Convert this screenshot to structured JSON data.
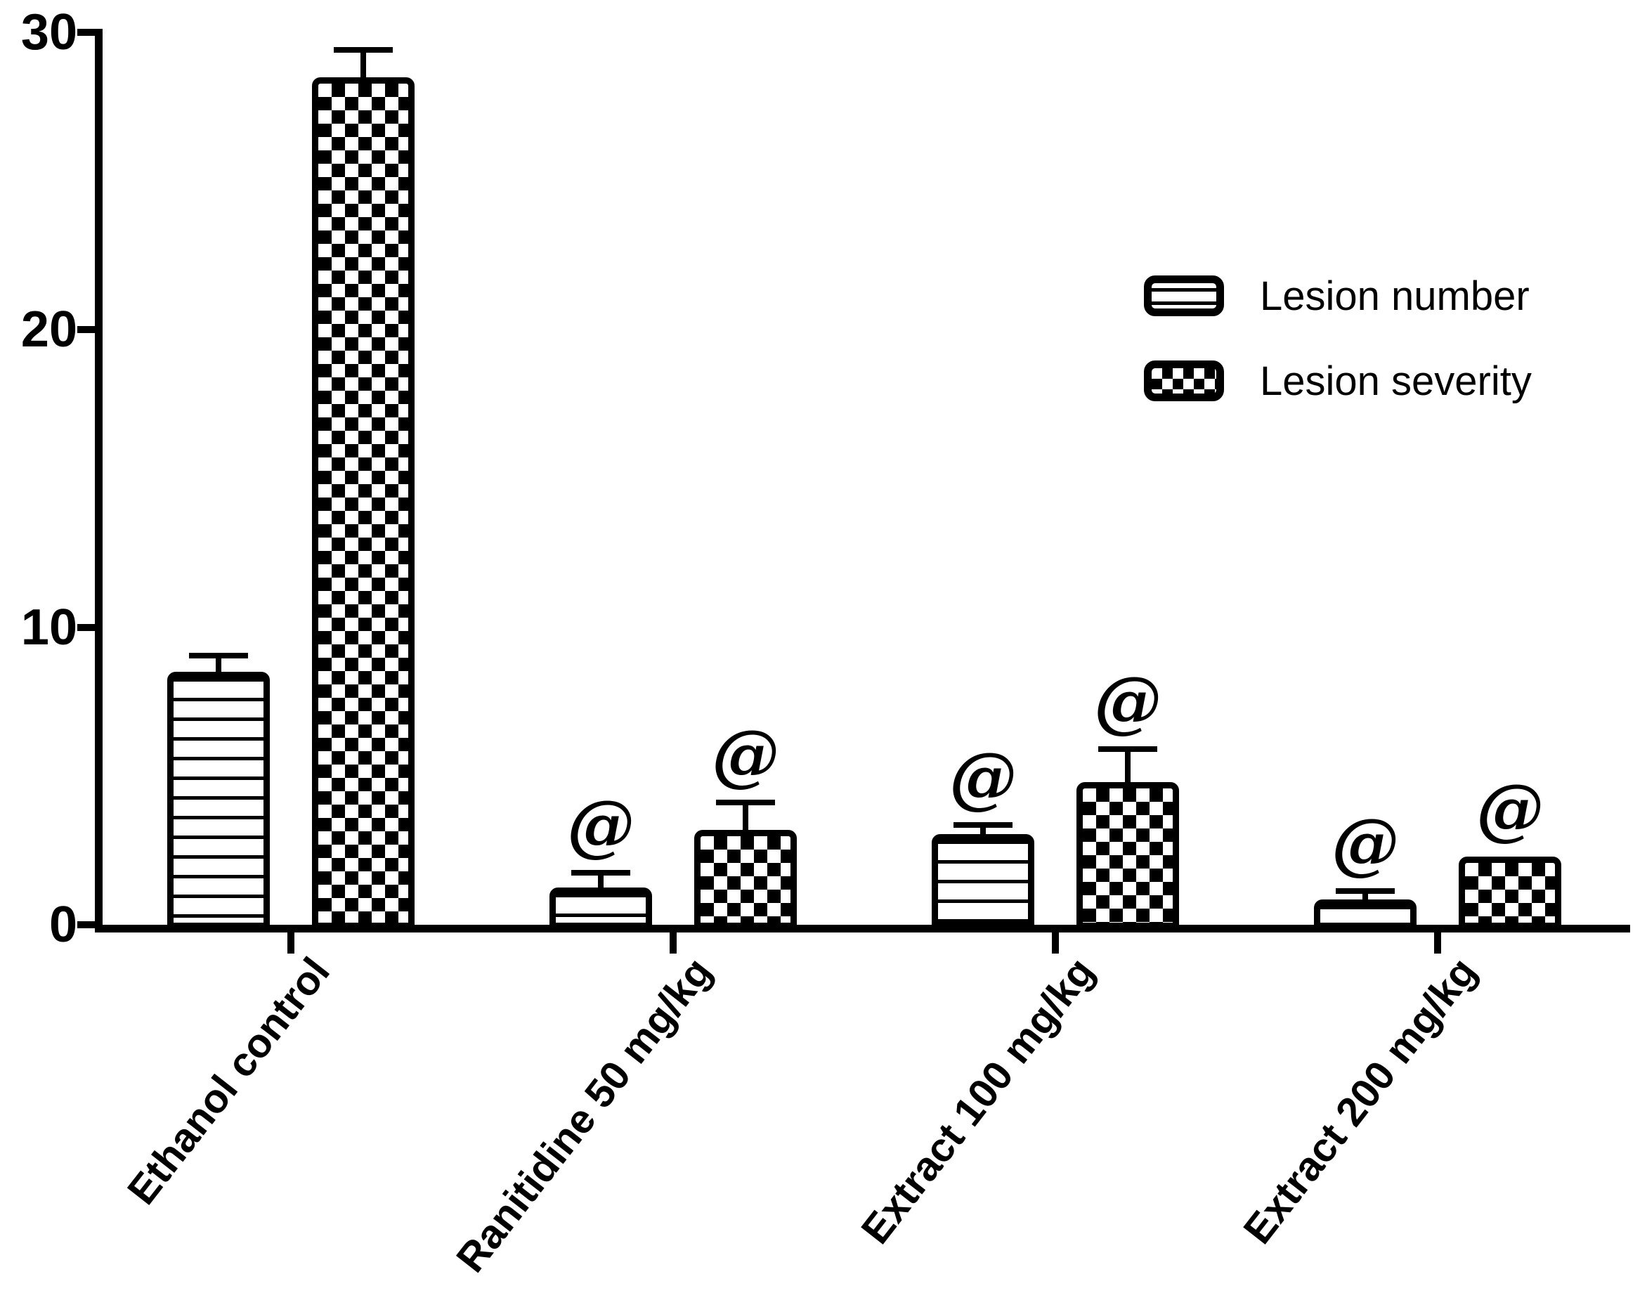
{
  "colors": {
    "foreground": "#000000",
    "background": "#ffffff"
  },
  "legend": {
    "items": [
      {
        "label": "Lesion number",
        "pattern": "horizontal-lines"
      },
      {
        "label": "Lesion severity",
        "pattern": "checkerboard"
      }
    ]
  },
  "chart_data": {
    "type": "bar",
    "title": "",
    "xlabel": "",
    "ylabel": "",
    "grid": false,
    "legend_position": "upper-right",
    "ylim": [
      0,
      30
    ],
    "yticks": [
      0,
      10,
      20,
      30
    ],
    "categories": [
      "Ethanol control",
      "Ranitidine 50 mg/kg",
      "Extract 100 mg/kg",
      "Extract 200 mg/kg"
    ],
    "series": [
      {
        "name": "Lesion number",
        "pattern": "horizontal-lines",
        "values": [
          8.5,
          1.25,
          3.05,
          0.85
        ],
        "sem": [
          0.55,
          0.5,
          0.3,
          0.28
        ],
        "annotations": [
          "",
          "@",
          "@",
          "@"
        ]
      },
      {
        "name": "Lesion severity",
        "pattern": "checkerboard",
        "values": [
          28.5,
          3.2,
          4.8,
          2.3
        ],
        "sem": [
          0.9,
          0.9,
          1.1,
          0
        ],
        "annotations": [
          "",
          "@",
          "@",
          "@"
        ]
      }
    ]
  }
}
